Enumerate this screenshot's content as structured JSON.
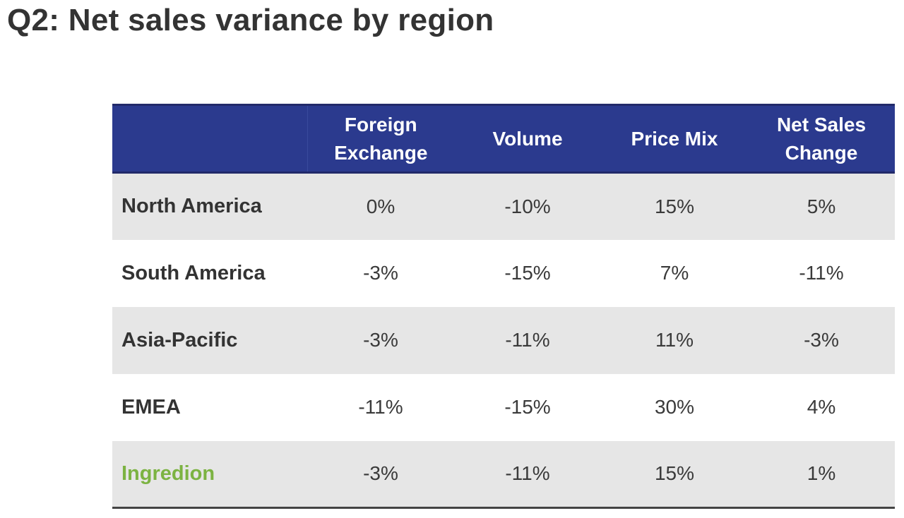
{
  "title": "Q2: Net sales variance by region",
  "table": {
    "header": {
      "fx": "Foreign Exchange",
      "volume": "Volume",
      "price_mix": "Price Mix",
      "net_sales_change": "Net Sales Change"
    },
    "rows": [
      {
        "region": "North America",
        "fx": "0%",
        "volume": "-10%",
        "price_mix": "15%",
        "net_sales_change": "5%"
      },
      {
        "region": "South America",
        "fx": "-3%",
        "volume": "-15%",
        "price_mix": "7%",
        "net_sales_change": "-11%"
      },
      {
        "region": "Asia-Pacific",
        "fx": "-3%",
        "volume": "-11%",
        "price_mix": "11%",
        "net_sales_change": "-3%"
      },
      {
        "region": "EMEA",
        "fx": "-11%",
        "volume": "-15%",
        "price_mix": "30%",
        "net_sales_change": "4%"
      },
      {
        "region": "Ingredion",
        "fx": "-3%",
        "volume": "-11%",
        "price_mix": "15%",
        "net_sales_change": "1%"
      }
    ]
  },
  "colors": {
    "header_bg": "#2b3a8e",
    "shaded_row": "#e6e6e6",
    "total_label": "#7cb342"
  }
}
